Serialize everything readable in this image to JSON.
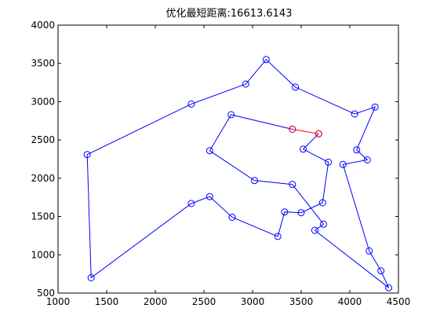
{
  "chart_data": {
    "type": "line",
    "title": "优化最短距离:16613.6143",
    "xlabel": "",
    "ylabel": "",
    "xlim": [
      1000,
      4500
    ],
    "ylim": [
      500,
      4000
    ],
    "xticks": [
      1000,
      1500,
      2000,
      2500,
      3000,
      3500,
      4000,
      4500
    ],
    "yticks": [
      500,
      1000,
      1500,
      2000,
      2500,
      3000,
      3500,
      4000
    ],
    "grid": false,
    "series": [
      {
        "line_color": "#0000ff",
        "marker": "circle",
        "points": [
          [
            3680,
            2580
          ],
          [
            3520,
            2380
          ],
          [
            3780,
            2210
          ],
          [
            3720,
            1680
          ],
          [
            3500,
            1550
          ],
          [
            3330,
            1560
          ],
          [
            3260,
            1240
          ],
          [
            2790,
            1490
          ],
          [
            2560,
            1760
          ],
          [
            2370,
            1670
          ],
          [
            1340,
            700
          ],
          [
            1300,
            2310
          ],
          [
            2370,
            2970
          ],
          [
            2930,
            3230
          ],
          [
            3140,
            3550
          ],
          [
            3440,
            3190
          ],
          [
            4050,
            2840
          ],
          [
            4260,
            2930
          ],
          [
            4070,
            2370
          ],
          [
            4180,
            2240
          ],
          [
            3930,
            2180
          ],
          [
            4200,
            1050
          ],
          [
            4320,
            790
          ],
          [
            4400,
            570
          ],
          [
            3640,
            1320
          ],
          [
            3730,
            1400
          ],
          [
            3410,
            1920
          ],
          [
            3020,
            1970
          ],
          [
            2560,
            2360
          ],
          [
            2780,
            2830
          ],
          [
            3410,
            2640
          ]
        ]
      },
      {
        "line_color": "#ff0000",
        "marker": "circle",
        "points": [
          [
            3410,
            2640
          ],
          [
            3680,
            2580
          ]
        ]
      }
    ]
  }
}
